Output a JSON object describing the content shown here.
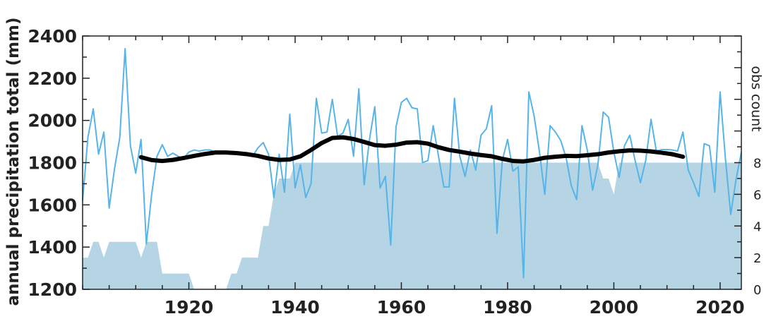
{
  "chart_data": {
    "type": "line",
    "title": "",
    "xlabel": "",
    "ylabel": "annual precipitation total (mm)",
    "y2label": "obs count",
    "xlim": [
      1900,
      2024
    ],
    "ylim": [
      1200,
      2400
    ],
    "y2lim": [
      0,
      16
    ],
    "x_ticks": [
      1920,
      1940,
      1960,
      1980,
      2000,
      2020
    ],
    "y_ticks": [
      1200,
      1400,
      1600,
      1800,
      2000,
      2200,
      2400
    ],
    "y2_ticks": [
      0,
      2,
      4,
      6,
      8
    ],
    "grid": false,
    "colors": {
      "annual_line": "#56b4e9",
      "smoothed_line": "#000000",
      "obs_fill": "#b5d5e4",
      "axis": "#222222"
    },
    "series": [
      {
        "kind": "area",
        "axis": "right",
        "x": [
          1900,
          1901,
          1902,
          1903,
          1904,
          1905,
          1906,
          1907,
          1908,
          1909,
          1910,
          1911,
          1912,
          1913,
          1914,
          1915,
          1916,
          1917,
          1918,
          1919,
          1920,
          1921,
          1922,
          1923,
          1924,
          1925,
          1926,
          1927,
          1928,
          1929,
          1930,
          1931,
          1932,
          1933,
          1934,
          1935,
          1936,
          1937,
          1938,
          1939,
          1940,
          1941,
          1942,
          1943,
          1944,
          1945,
          1946,
          1947,
          1948,
          1949,
          1950,
          1951,
          1952,
          1953,
          1954,
          1955,
          1956,
          1957,
          1958,
          1959,
          1960,
          1961,
          1962,
          1963,
          1964,
          1965,
          1966,
          1967,
          1968,
          1969,
          1970,
          1971,
          1972,
          1973,
          1974,
          1975,
          1976,
          1977,
          1978,
          1979,
          1980,
          1981,
          1982,
          1983,
          1984,
          1985,
          1986,
          1987,
          1988,
          1989,
          1990,
          1991,
          1992,
          1993,
          1994,
          1995,
          1996,
          1997,
          1998,
          1999,
          2000,
          2001,
          2002,
          2003,
          2004,
          2005,
          2006,
          2007,
          2008,
          2009,
          2010,
          2011,
          2012,
          2013,
          2014,
          2015,
          2016,
          2017,
          2018,
          2019,
          2020,
          2021,
          2022,
          2023,
          2024
        ],
        "values": [
          2,
          2,
          3,
          3,
          2,
          3,
          3,
          3,
          3,
          3,
          3,
          2,
          3,
          3,
          3,
          1,
          1,
          1,
          1,
          1,
          1,
          0,
          0,
          0,
          0,
          0,
          0,
          0,
          1,
          1,
          2,
          2,
          2,
          2,
          4,
          4,
          6,
          7,
          7,
          7,
          8,
          8,
          8,
          8,
          8,
          8,
          8,
          8,
          8,
          8,
          8,
          8,
          8,
          8,
          8,
          8,
          8,
          8,
          8,
          8,
          8,
          8,
          8,
          8,
          8,
          8,
          8,
          8,
          8,
          8,
          8,
          8,
          8,
          8,
          8,
          8,
          8,
          8,
          8,
          8,
          8,
          8,
          8,
          8,
          8,
          8,
          8,
          8,
          8,
          8,
          8,
          8,
          8,
          8,
          8,
          8,
          8,
          8,
          7,
          7,
          6,
          8,
          8,
          8,
          8,
          8,
          8,
          8,
          8,
          8,
          8,
          8,
          8,
          8,
          8,
          8,
          8,
          8,
          8,
          8,
          8,
          8,
          8,
          8,
          8
        ]
      },
      {
        "kind": "line",
        "axis": "left",
        "x": [
          1900,
          1901,
          1902,
          1903,
          1904,
          1905,
          1906,
          1907,
          1908,
          1909,
          1910,
          1911,
          1912,
          1913,
          1914,
          1915,
          1916,
          1917,
          1918,
          1919,
          1920,
          1921,
          1922,
          1923,
          1924,
          1925,
          1926,
          1927,
          1928,
          1929,
          1930,
          1931,
          1932,
          1933,
          1934,
          1935,
          1936,
          1937,
          1938,
          1939,
          1940,
          1941,
          1942,
          1943,
          1944,
          1945,
          1946,
          1947,
          1948,
          1949,
          1950,
          1951,
          1952,
          1953,
          1954,
          1955,
          1956,
          1957,
          1958,
          1959,
          1960,
          1961,
          1962,
          1963,
          1964,
          1965,
          1966,
          1967,
          1968,
          1969,
          1970,
          1971,
          1972,
          1973,
          1974,
          1975,
          1976,
          1977,
          1978,
          1979,
          1980,
          1981,
          1982,
          1983,
          1984,
          1985,
          1986,
          1987,
          1988,
          1989,
          1990,
          1991,
          1992,
          1993,
          1994,
          1995,
          1996,
          1997,
          1998,
          1999,
          2000,
          2001,
          2002,
          2003,
          2004,
          2005,
          2006,
          2007,
          2008,
          2009,
          2010,
          2011,
          2012,
          2013,
          2014,
          2015,
          2016,
          2017,
          2018,
          2019,
          2020,
          2021,
          2022,
          2023,
          2024
        ],
        "values": [
          1620,
          1920,
          2055,
          1840,
          1945,
          1585,
          1770,
          1920,
          2340,
          1880,
          1750,
          1910,
          1415,
          1650,
          1830,
          1885,
          1830,
          1845,
          1830,
          1820,
          1850,
          1860,
          1855,
          1860,
          1860,
          1850,
          1855,
          1850,
          1848,
          1848,
          1842,
          1842,
          1830,
          1870,
          1895,
          1840,
          1635,
          1840,
          1660,
          2030,
          1680,
          1790,
          1635,
          1700,
          2105,
          1940,
          1945,
          2100,
          1925,
          1940,
          2005,
          1830,
          2150,
          1695,
          1910,
          2065,
          1680,
          1735,
          1410,
          1970,
          2085,
          2105,
          2060,
          2055,
          1800,
          1810,
          1975,
          1830,
          1685,
          1685,
          2105,
          1830,
          1735,
          1860,
          1765,
          1930,
          1960,
          2070,
          1465,
          1810,
          1910,
          1760,
          1780,
          1255,
          2135,
          2020,
          1850,
          1650,
          1975,
          1945,
          1905,
          1825,
          1690,
          1625,
          1975,
          1860,
          1670,
          1790,
          2040,
          2015,
          1850,
          1730,
          1880,
          1930,
          1810,
          1705,
          1810,
          2005,
          1855,
          1862,
          1862,
          1860,
          1855,
          1945,
          1765,
          1705,
          1640,
          1890,
          1880,
          1660,
          2135,
          1820,
          1555,
          1720,
          1850
        ]
      },
      {
        "kind": "line",
        "axis": "left",
        "x": [
          1911,
          1913,
          1915,
          1917,
          1919,
          1921,
          1923,
          1925,
          1927,
          1929,
          1931,
          1933,
          1935,
          1937,
          1939,
          1941,
          1943,
          1945,
          1947,
          1949,
          1951,
          1953,
          1955,
          1957,
          1959,
          1961,
          1963,
          1965,
          1967,
          1969,
          1971,
          1973,
          1975,
          1977,
          1979,
          1981,
          1983,
          1985,
          1987,
          1989,
          1991,
          1993,
          1995,
          1997,
          1999,
          2001,
          2003,
          2005,
          2007,
          2009,
          2011,
          2013
        ],
        "values": [
          1826,
          1812,
          1808,
          1813,
          1822,
          1832,
          1841,
          1848,
          1848,
          1845,
          1840,
          1832,
          1820,
          1813,
          1815,
          1830,
          1860,
          1893,
          1917,
          1920,
          1912,
          1898,
          1883,
          1880,
          1885,
          1895,
          1897,
          1890,
          1873,
          1860,
          1852,
          1843,
          1836,
          1830,
          1818,
          1808,
          1806,
          1813,
          1823,
          1828,
          1832,
          1831,
          1835,
          1840,
          1848,
          1854,
          1858,
          1857,
          1853,
          1847,
          1840,
          1828
        ]
      }
    ]
  }
}
